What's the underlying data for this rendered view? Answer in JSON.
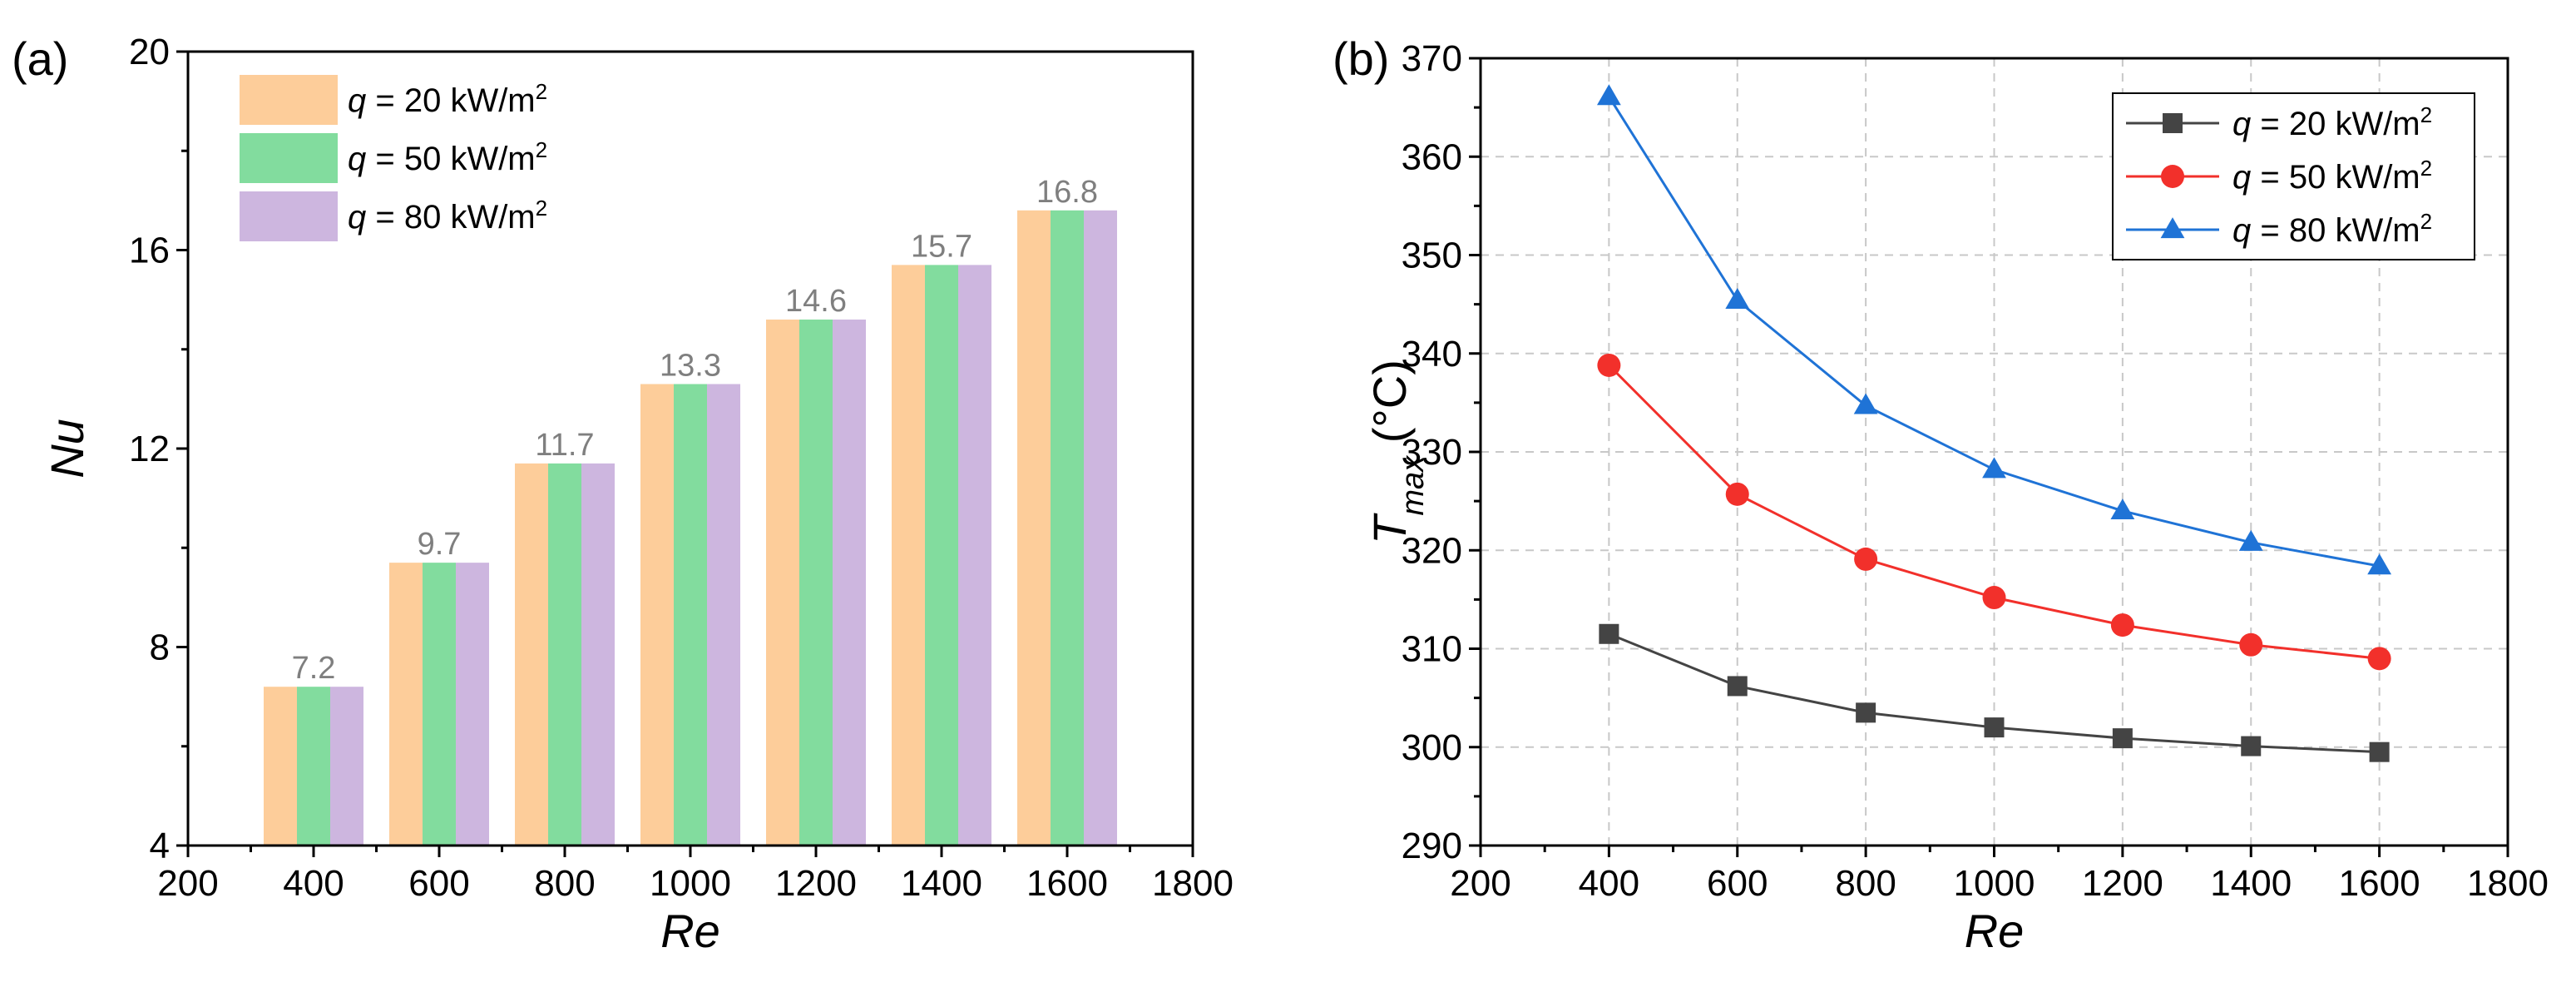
{
  "figure": {
    "panel_a_label": "(a)",
    "panel_b_label": "(b)"
  },
  "chart_data": [
    {
      "type": "bar",
      "xlabel": "Re",
      "ylabel": "Nu",
      "xlim": [
        200,
        1800
      ],
      "ylim": [
        4,
        20
      ],
      "xticks": [
        200,
        400,
        600,
        800,
        1000,
        1200,
        1400,
        1600,
        1800
      ],
      "yticks": [
        4,
        8,
        12,
        16,
        20
      ],
      "categories": [
        400,
        600,
        800,
        1000,
        1200,
        1400,
        1600
      ],
      "series": [
        {
          "name": "q = 20 kW/m2",
          "q": "q",
          "rest": " = 20 kW/m",
          "sup": "2",
          "color": "#fdcd9a",
          "values": [
            7.2,
            9.7,
            11.7,
            13.3,
            14.6,
            15.7,
            16.8
          ]
        },
        {
          "name": "q = 50 kW/m2",
          "q": "q",
          "rest": " = 50 kW/m",
          "sup": "2",
          "color": "#82dc9e",
          "values": [
            7.2,
            9.7,
            11.7,
            13.3,
            14.6,
            15.7,
            16.8
          ]
        },
        {
          "name": "q = 80 kW/m2",
          "q": "q",
          "rest": " = 80 kW/m",
          "sup": "2",
          "color": "#cdb6df",
          "values": [
            7.2,
            9.7,
            11.7,
            13.3,
            14.6,
            15.7,
            16.8
          ]
        }
      ],
      "data_labels": [
        "7.2",
        "9.7",
        "11.7",
        "13.3",
        "14.6",
        "15.7",
        "16.8"
      ],
      "legend": "top-left",
      "grid": false
    },
    {
      "type": "line",
      "xlabel": "Re",
      "ylabel_main": "T",
      "ylabel_sub": "max",
      "ylabel_unit": " (°C)",
      "xlim": [
        200,
        1800
      ],
      "ylim": [
        290,
        370
      ],
      "xticks": [
        200,
        400,
        600,
        800,
        1000,
        1200,
        1400,
        1600,
        1800
      ],
      "yticks": [
        290,
        300,
        310,
        320,
        330,
        340,
        350,
        360,
        370
      ],
      "x": [
        400,
        600,
        800,
        1000,
        1200,
        1400,
        1600
      ],
      "series": [
        {
          "name": "q = 20 kW/m2",
          "q": "q",
          "rest": " = 20 kW/m",
          "sup": "2",
          "color": "#444444",
          "marker": "square",
          "values": [
            311.5,
            306.2,
            303.5,
            302.0,
            300.9,
            300.1,
            299.5
          ]
        },
        {
          "name": "q = 50 kW/m2",
          "q": "q",
          "rest": " = 50 kW/m",
          "sup": "2",
          "color": "#f2302b",
          "marker": "circle",
          "values": [
            338.8,
            325.7,
            319.1,
            315.2,
            312.4,
            310.4,
            309.0
          ]
        },
        {
          "name": "q = 80 kW/m2",
          "q": "q",
          "rest": " = 80 kW/m",
          "sup": "2",
          "color": "#1f73d6",
          "marker": "triangle",
          "values": [
            366.1,
            345.4,
            334.7,
            328.2,
            324.0,
            320.8,
            318.4
          ]
        }
      ],
      "legend": "top-right",
      "grid": true
    }
  ]
}
